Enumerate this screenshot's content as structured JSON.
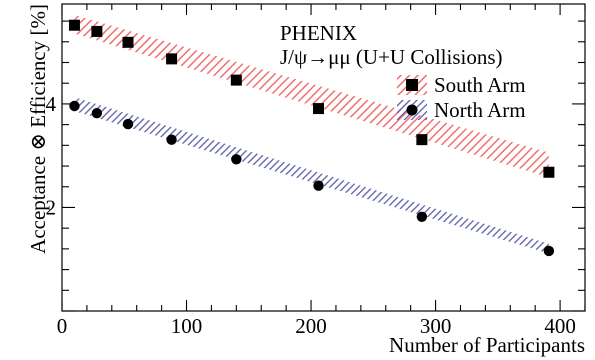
{
  "chart_data": {
    "type": "scatter",
    "annotation_lines": [
      "PHENIX",
      "J/ψ→μμ (U+U Collisions)"
    ],
    "xlabel": "Number of Participants",
    "ylabel": "Acceptance ⊗ Efficiency [%]",
    "xlim": [
      0,
      420
    ],
    "ylim": [
      0,
      5.93
    ],
    "x_ticks": [
      0,
      100,
      200,
      300,
      400
    ],
    "x_tick_labels": [
      "0",
      "100",
      "200",
      "300",
      "400"
    ],
    "y_ticks": [
      2,
      4
    ],
    "y_tick_labels": [
      "2",
      "4"
    ],
    "grid": false,
    "legend_position": "top-right",
    "series": [
      {
        "name": "South Arm",
        "marker": "square",
        "band_color": "#f07070",
        "x": [
          10,
          28,
          53,
          88,
          140,
          206,
          289,
          391
        ],
        "y": [
          5.52,
          5.4,
          5.19,
          4.87,
          4.46,
          3.91,
          3.31,
          2.68
        ],
        "band": {
          "x": [
            10,
            391
          ],
          "lower": [
            5.36,
            2.58
          ],
          "upper": [
            5.72,
            3.06
          ]
        }
      },
      {
        "name": "North Arm",
        "marker": "circle",
        "band_color": "#5b5fa8",
        "x": [
          10,
          28,
          53,
          88,
          140,
          206,
          289,
          391
        ],
        "y": [
          3.96,
          3.82,
          3.61,
          3.31,
          2.93,
          2.42,
          1.82,
          1.16
        ],
        "band": {
          "x": [
            10,
            391
          ],
          "lower": [
            3.86,
            1.11
          ],
          "upper": [
            4.13,
            1.3
          ]
        }
      }
    ]
  }
}
